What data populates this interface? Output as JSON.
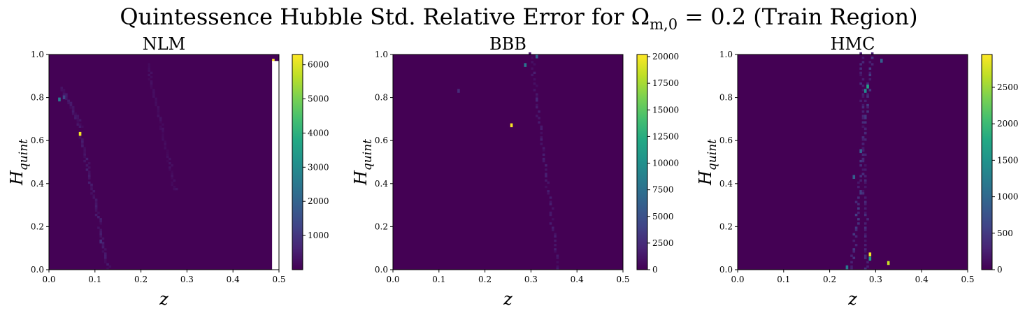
{
  "figure": {
    "title": "Quintessence Hubble Std. Relative Error for Ω",
    "title_sub": "m,0",
    "title_rest": " = 0.2 (Train Region)"
  },
  "colormap": "viridis",
  "chart_data": [
    {
      "type": "heatmap",
      "title": "NLM",
      "xlabel": "z",
      "ylabel": "H",
      "ylabel_sub": "quint",
      "xlim": [
        0.0,
        0.5
      ],
      "ylim": [
        0.0,
        1.0
      ],
      "xticks": [
        "0.0",
        "0.1",
        "0.2",
        "0.3",
        "0.4",
        "0.5"
      ],
      "yticks": [
        "0.0",
        "0.2",
        "0.4",
        "0.6",
        "0.8",
        "1.0"
      ],
      "colorbar": {
        "min": 0,
        "max": 6300,
        "ticks": [
          1000,
          2000,
          3000,
          4000,
          5000,
          6000
        ]
      },
      "background_value": 20,
      "masked_region": {
        "x": [
          0.485,
          0.5
        ],
        "y": [
          0.0,
          0.97
        ]
      },
      "hot_cells": [
        {
          "x": 0.068,
          "y": 0.63,
          "v": 6200
        },
        {
          "x": 0.022,
          "y": 0.79,
          "v": 2600
        },
        {
          "x": 0.486,
          "y": 0.97,
          "v": 6300
        },
        {
          "x": 0.03,
          "y": 0.8,
          "v": 1300
        },
        {
          "x": 0.112,
          "y": 0.13,
          "v": 800
        }
      ],
      "streaks": [
        {
          "x": [
            0.07,
            0.13
          ],
          "y": [
            0.63,
            0.0
          ],
          "v": 450
        },
        {
          "x": [
            0.03,
            0.07
          ],
          "y": [
            0.84,
            0.66
          ],
          "v": 400
        },
        {
          "x": [
            0.215,
            0.275
          ],
          "y": [
            0.95,
            0.37
          ],
          "v": 250
        }
      ]
    },
    {
      "type": "heatmap",
      "title": "BBB",
      "xlabel": "z",
      "ylabel": "H",
      "ylabel_sub": "quint",
      "xlim": [
        0.0,
        0.5
      ],
      "ylim": [
        0.0,
        1.0
      ],
      "xticks": [
        "0.0",
        "0.1",
        "0.2",
        "0.3",
        "0.4",
        "0.5"
      ],
      "yticks": [
        "0.0",
        "0.2",
        "0.4",
        "0.6",
        "0.8",
        "1.0"
      ],
      "colorbar": {
        "min": 0,
        "max": 20200,
        "ticks": [
          0,
          2500,
          5000,
          7500,
          10000,
          12500,
          15000,
          17500,
          20000
        ]
      },
      "background_value": 0,
      "masked_region": null,
      "hot_cells": [
        {
          "x": 0.258,
          "y": 0.67,
          "v": 20000
        },
        {
          "x": 0.29,
          "y": 0.95,
          "v": 8000
        },
        {
          "x": 0.31,
          "y": 0.99,
          "v": 6500
        },
        {
          "x": 0.145,
          "y": 0.83,
          "v": 2500
        },
        {
          "x": 0.31,
          "y": 0.79,
          "v": 2000
        }
      ],
      "streaks": [
        {
          "x": [
            0.3,
            0.36
          ],
          "y": [
            1.0,
            0.0
          ],
          "v": 1500
        }
      ]
    },
    {
      "type": "heatmap",
      "title": "HMC",
      "xlabel": "z",
      "ylabel": "H",
      "ylabel_sub": "quint",
      "xlim": [
        0.0,
        0.5
      ],
      "ylim": [
        0.0,
        1.0
      ],
      "xticks": [
        "0.0",
        "0.1",
        "0.2",
        "0.3",
        "0.4",
        "0.5"
      ],
      "yticks": [
        "0.0",
        "0.2",
        "0.4",
        "0.6",
        "0.8",
        "1.0"
      ],
      "colorbar": {
        "min": 0,
        "max": 2950,
        "ticks": [
          0,
          500,
          1000,
          1500,
          2000,
          2500
        ]
      },
      "background_value": 0,
      "masked_region": null,
      "hot_cells": [
        {
          "x": 0.29,
          "y": 0.07,
          "v": 2900
        },
        {
          "x": 0.328,
          "y": 0.03,
          "v": 2700
        },
        {
          "x": 0.282,
          "y": 0.85,
          "v": 1700
        },
        {
          "x": 0.277,
          "y": 0.83,
          "v": 1400
        },
        {
          "x": 0.238,
          "y": 0.01,
          "v": 1200
        },
        {
          "x": 0.29,
          "y": 0.05,
          "v": 1600
        },
        {
          "x": 0.265,
          "y": 0.55,
          "v": 900
        },
        {
          "x": 0.25,
          "y": 0.43,
          "v": 900
        },
        {
          "x": 0.31,
          "y": 0.97,
          "v": 900
        }
      ],
      "streaks": [
        {
          "x": [
            0.29,
            0.25
          ],
          "y": [
            1.0,
            0.0
          ],
          "v": 450
        },
        {
          "x": [
            0.27,
            0.28
          ],
          "y": [
            1.0,
            0.0
          ],
          "v": 350
        }
      ]
    }
  ]
}
